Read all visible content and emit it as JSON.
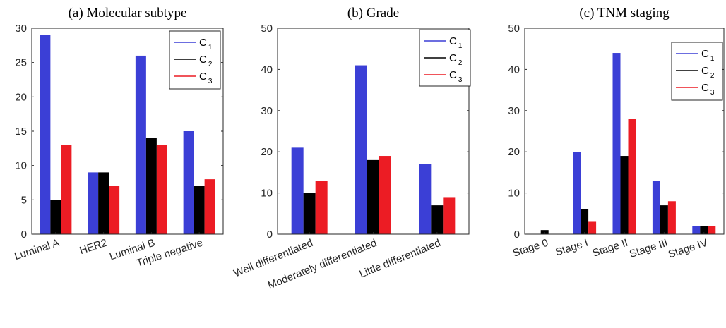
{
  "legend_labels": [
    {
      "base": "C",
      "sub": "1"
    },
    {
      "base": "C",
      "sub": "2"
    },
    {
      "base": "C",
      "sub": "3"
    }
  ],
  "colors": {
    "C1": "#3b3fd6",
    "C2": "#000000",
    "C3": "#ec1c24"
  },
  "chart_data": [
    {
      "type": "bar",
      "title": "(a) Molecular subtype",
      "categories": [
        "Luminal A",
        "HER2",
        "Luminal B",
        "Triple negative"
      ],
      "series": [
        {
          "values": [
            29,
            9,
            26,
            15
          ]
        },
        {
          "values": [
            5,
            9,
            14,
            7
          ]
        },
        {
          "values": [
            13,
            7,
            13,
            8
          ]
        }
      ],
      "ylim": [
        0,
        30
      ],
      "yticks": [
        "0",
        "5",
        "10",
        "15",
        "20",
        "25",
        "30"
      ],
      "grid": false,
      "legend": "top-right"
    },
    {
      "type": "bar",
      "title": "(b) Grade",
      "categories": [
        "Well differentiated",
        "Moderately differentiated",
        "Little differentiated"
      ],
      "series": [
        {
          "values": [
            21,
            41,
            17
          ]
        },
        {
          "values": [
            10,
            18,
            7
          ]
        },
        {
          "values": [
            13,
            19,
            9
          ]
        }
      ],
      "ylim": [
        0,
        50
      ],
      "yticks": [
        "0",
        "10",
        "20",
        "30",
        "40",
        "50"
      ],
      "grid": false,
      "legend": "top-right"
    },
    {
      "type": "bar",
      "title": "(c) TNM staging",
      "categories": [
        "Stage 0",
        "Stage I",
        "Stage II",
        "Stage III",
        "Stage IV"
      ],
      "series": [
        {
          "values": [
            0,
            20,
            44,
            13,
            2
          ]
        },
        {
          "values": [
            1,
            6,
            19,
            7,
            2
          ]
        },
        {
          "values": [
            0,
            3,
            28,
            8,
            2
          ]
        }
      ],
      "ylim": [
        0,
        50
      ],
      "yticks": [
        "0",
        "10",
        "20",
        "30",
        "40",
        "50"
      ],
      "grid": false,
      "legend": "top-right"
    }
  ]
}
